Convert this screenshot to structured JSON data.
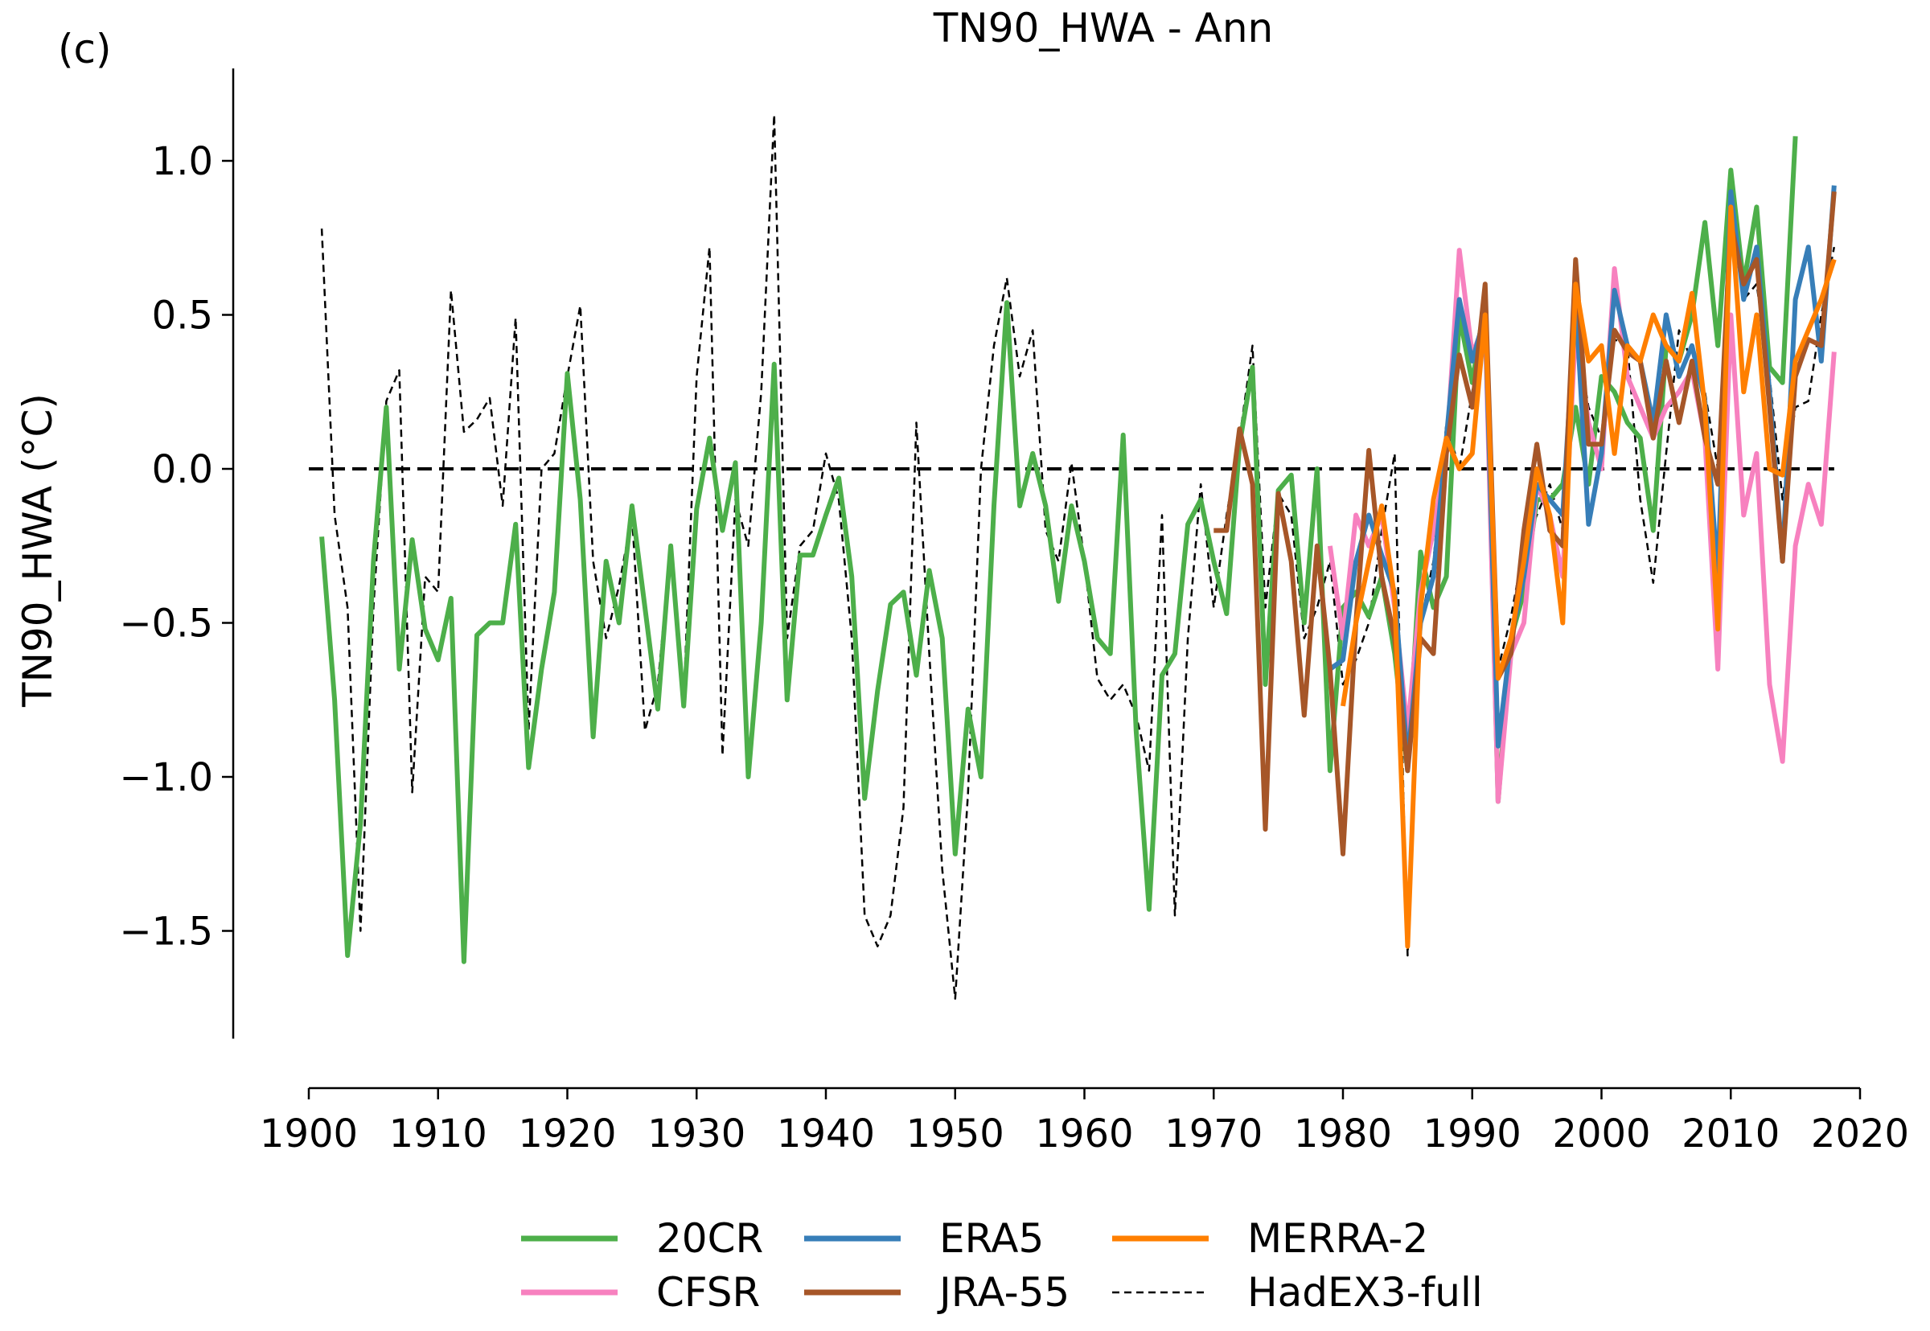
{
  "panel_label": "(c)",
  "chart_data": {
    "type": "line",
    "title": "TN90_HWA - Ann",
    "xlabel": "",
    "ylabel": "TN90_HWA (°C)",
    "xlim": [
      1900,
      2020
    ],
    "ylim": [
      -1.85,
      1.3
    ],
    "xticks": [
      1900,
      1910,
      1920,
      1930,
      1940,
      1950,
      1960,
      1970,
      1980,
      1990,
      2000,
      2010,
      2020
    ],
    "yticks": [
      1.0,
      0.5,
      0.0,
      -0.5,
      -1.0,
      -1.5
    ],
    "ytick_labels": [
      "1.0",
      "0.5",
      "0.0",
      "−0.5",
      "−1.0",
      "−1.5"
    ],
    "grid": false,
    "reference_line": {
      "y": 0.0,
      "x_range": [
        1900,
        2018
      ],
      "style": "dashed",
      "color": "#000000"
    },
    "legend": {
      "placement": "bottom",
      "columns": 3
    },
    "series": [
      {
        "name": "HadEX3-full",
        "color": "#000000",
        "style": "dashed",
        "x": [
          1901,
          1902,
          1903,
          1904,
          1905,
          1906,
          1907,
          1908,
          1909,
          1910,
          1911,
          1912,
          1913,
          1914,
          1915,
          1916,
          1917,
          1918,
          1919,
          1920,
          1921,
          1922,
          1923,
          1924,
          1925,
          1926,
          1927,
          1928,
          1929,
          1930,
          1931,
          1932,
          1933,
          1934,
          1935,
          1936,
          1937,
          1938,
          1939,
          1940,
          1941,
          1942,
          1943,
          1944,
          1945,
          1946,
          1947,
          1948,
          1949,
          1950,
          1951,
          1952,
          1953,
          1954,
          1955,
          1956,
          1957,
          1958,
          1959,
          1960,
          1961,
          1962,
          1963,
          1964,
          1965,
          1966,
          1967,
          1968,
          1969,
          1970,
          1971,
          1972,
          1973,
          1974,
          1975,
          1976,
          1977,
          1978,
          1979,
          1980,
          1981,
          1982,
          1983,
          1984,
          1985,
          1986,
          1987,
          1988,
          1989,
          1990,
          1991,
          1992,
          1993,
          1994,
          1995,
          1996,
          1997,
          1998,
          1999,
          2000,
          2001,
          2002,
          2003,
          2004,
          2005,
          2006,
          2007,
          2008,
          2009,
          2010,
          2011,
          2012,
          2013,
          2014,
          2015,
          2016,
          2017,
          2018
        ],
        "y": [
          0.78,
          -0.15,
          -0.45,
          -1.5,
          -0.45,
          0.22,
          0.32,
          -1.05,
          -0.35,
          -0.4,
          0.58,
          0.12,
          0.16,
          0.23,
          -0.12,
          0.49,
          -0.85,
          0.0,
          0.05,
          0.3,
          0.53,
          -0.3,
          -0.55,
          -0.38,
          -0.15,
          -0.85,
          -0.7,
          -0.25,
          -0.75,
          0.3,
          0.72,
          -0.93,
          -0.1,
          -0.25,
          0.25,
          1.15,
          -0.55,
          -0.25,
          -0.2,
          0.05,
          -0.1,
          -0.55,
          -1.45,
          -1.55,
          -1.45,
          -1.1,
          0.15,
          -0.6,
          -1.3,
          -1.72,
          -1.05,
          0.0,
          0.4,
          0.62,
          0.3,
          0.45,
          -0.2,
          -0.3,
          0.02,
          -0.3,
          -0.68,
          -0.75,
          -0.7,
          -0.8,
          -0.98,
          -0.15,
          -1.45,
          -0.55,
          -0.05,
          -0.45,
          -0.15,
          0.1,
          0.4,
          -0.45,
          -0.08,
          -0.15,
          -0.55,
          -0.45,
          -0.3,
          -0.7,
          -0.62,
          -0.5,
          -0.2,
          0.05,
          -1.58,
          -0.5,
          -0.3,
          0.15,
          0.0,
          0.25,
          0.58,
          -0.65,
          -0.48,
          -0.25,
          -0.15,
          -0.05,
          -0.2,
          0.45,
          0.2,
          0.1,
          0.42,
          0.4,
          -0.1,
          -0.37,
          0.05,
          0.45,
          0.35,
          0.25,
          0.0,
          0.85,
          0.55,
          0.6,
          0.3,
          -0.1,
          0.2,
          0.22,
          0.5,
          0.72
        ]
      },
      {
        "name": "20CR",
        "color": "#4daf4a",
        "style": "solid",
        "x": [
          1901,
          1902,
          1903,
          1904,
          1905,
          1906,
          1907,
          1908,
          1909,
          1910,
          1911,
          1912,
          1913,
          1914,
          1915,
          1916,
          1917,
          1918,
          1919,
          1920,
          1921,
          1922,
          1923,
          1924,
          1925,
          1926,
          1927,
          1928,
          1929,
          1930,
          1931,
          1932,
          1933,
          1934,
          1935,
          1936,
          1937,
          1938,
          1939,
          1940,
          1941,
          1942,
          1943,
          1944,
          1945,
          1946,
          1947,
          1948,
          1949,
          1950,
          1951,
          1952,
          1953,
          1954,
          1955,
          1956,
          1957,
          1958,
          1959,
          1960,
          1961,
          1962,
          1963,
          1964,
          1965,
          1966,
          1967,
          1968,
          1969,
          1970,
          1971,
          1972,
          1973,
          1974,
          1975,
          1976,
          1977,
          1978,
          1979,
          1980,
          1981,
          1982,
          1983,
          1984,
          1985,
          1986,
          1987,
          1988,
          1989,
          1990,
          1991,
          1992,
          1993,
          1994,
          1995,
          1996,
          1997,
          1998,
          1999,
          2000,
          2001,
          2002,
          2003,
          2004,
          2005,
          2006,
          2007,
          2008,
          2009,
          2010,
          2011,
          2012,
          2013,
          2014,
          2015
        ],
        "y": [
          -0.22,
          -0.75,
          -1.58,
          -1.15,
          -0.3,
          0.2,
          -0.65,
          -0.23,
          -0.52,
          -0.62,
          -0.42,
          -1.6,
          -0.54,
          -0.5,
          -0.5,
          -0.18,
          -0.97,
          -0.65,
          -0.4,
          0.31,
          -0.1,
          -0.87,
          -0.3,
          -0.5,
          -0.12,
          -0.45,
          -0.78,
          -0.25,
          -0.77,
          -0.13,
          0.1,
          -0.2,
          0.02,
          -1.0,
          -0.5,
          0.34,
          -0.75,
          -0.28,
          -0.28,
          -0.15,
          -0.03,
          -0.35,
          -1.07,
          -0.72,
          -0.44,
          -0.4,
          -0.67,
          -0.33,
          -0.55,
          -1.25,
          -0.78,
          -1.0,
          -0.12,
          0.54,
          -0.12,
          0.05,
          -0.12,
          -0.43,
          -0.12,
          -0.3,
          -0.55,
          -0.6,
          0.11,
          -0.85,
          -1.43,
          -0.67,
          -0.6,
          -0.18,
          -0.1,
          -0.3,
          -0.47,
          0.08,
          0.33,
          -0.7,
          -0.07,
          -0.02,
          -0.5,
          0.0,
          -0.98,
          -0.45,
          -0.4,
          -0.48,
          -0.35,
          -0.6,
          -0.98,
          -0.27,
          -0.45,
          -0.35,
          0.5,
          0.28,
          0.55,
          -1.08,
          -0.55,
          -0.4,
          -0.1,
          -0.1,
          -0.05,
          0.2,
          -0.05,
          0.3,
          0.25,
          0.15,
          0.1,
          -0.2,
          0.4,
          0.35,
          0.5,
          0.8,
          0.4,
          0.97,
          0.6,
          0.85,
          0.33,
          0.28,
          1.08
        ]
      },
      {
        "name": "CFSR",
        "color": "#f781bf",
        "style": "solid",
        "x": [
          1979,
          1980,
          1981,
          1982,
          1983,
          1984,
          1985,
          1986,
          1987,
          1988,
          1989,
          1990,
          1991,
          1992,
          1993,
          1994,
          1995,
          1996,
          1997,
          1998,
          1999,
          2000,
          2001,
          2002,
          2003,
          2004,
          2005,
          2006,
          2007,
          2008,
          2009,
          2010,
          2011,
          2012,
          2013,
          2014,
          2015,
          2016,
          2017,
          2018
        ],
        "y": [
          -0.25,
          -0.55,
          -0.15,
          -0.25,
          -0.15,
          -0.45,
          -0.85,
          -0.4,
          -0.2,
          0.05,
          0.71,
          0.37,
          0.48,
          -1.08,
          -0.6,
          -0.5,
          -0.05,
          -0.15,
          -0.35,
          0.45,
          0.15,
          0.0,
          0.65,
          0.3,
          0.2,
          0.1,
          0.2,
          0.25,
          0.32,
          0.1,
          -0.65,
          0.5,
          -0.15,
          0.05,
          -0.7,
          -0.95,
          -0.25,
          -0.05,
          -0.18,
          0.38
        ]
      },
      {
        "name": "ERA5",
        "color": "#377eb8",
        "style": "solid",
        "x": [
          1979,
          1980,
          1981,
          1982,
          1983,
          1984,
          1985,
          1986,
          1987,
          1988,
          1989,
          1990,
          1991,
          1992,
          1993,
          1994,
          1995,
          1996,
          1997,
          1998,
          1999,
          2000,
          2001,
          2002,
          2003,
          2004,
          2005,
          2006,
          2007,
          2008,
          2009,
          2010,
          2011,
          2012,
          2013,
          2014,
          2015,
          2016,
          2017,
          2018
        ],
        "y": [
          -0.65,
          -0.62,
          -0.3,
          -0.15,
          -0.28,
          -0.4,
          -0.95,
          -0.5,
          -0.35,
          0.1,
          0.55,
          0.35,
          0.5,
          -0.9,
          -0.55,
          -0.35,
          -0.05,
          -0.1,
          -0.15,
          0.55,
          -0.18,
          0.05,
          0.58,
          0.4,
          0.35,
          0.15,
          0.5,
          0.3,
          0.4,
          0.22,
          -0.35,
          0.9,
          0.55,
          0.72,
          0.25,
          -0.3,
          0.55,
          0.72,
          0.35,
          0.92
        ]
      },
      {
        "name": "JRA-55",
        "color": "#a65628",
        "style": "solid",
        "x": [
          1970,
          1971,
          1972,
          1973,
          1974,
          1975,
          1976,
          1977,
          1978,
          1979,
          1980,
          1981,
          1982,
          1983,
          1984,
          1985,
          1986,
          1987,
          1988,
          1989,
          1990,
          1991,
          1992,
          1993,
          1994,
          1995,
          1996,
          1997,
          1998,
          1999,
          2000,
          2001,
          2002,
          2003,
          2004,
          2005,
          2006,
          2007,
          2008,
          2009,
          2010,
          2011,
          2012,
          2013,
          2014,
          2015,
          2016,
          2017,
          2018
        ],
        "y": [
          -0.2,
          -0.2,
          0.13,
          -0.05,
          -1.17,
          -0.08,
          -0.3,
          -0.8,
          -0.25,
          -0.65,
          -1.25,
          -0.5,
          0.06,
          -0.35,
          -0.55,
          -0.98,
          -0.55,
          -0.6,
          0.05,
          0.37,
          0.2,
          0.6,
          -0.68,
          -0.6,
          -0.2,
          0.08,
          -0.2,
          -0.25,
          0.68,
          0.08,
          0.08,
          0.45,
          0.38,
          0.35,
          0.1,
          0.35,
          0.15,
          0.35,
          0.1,
          -0.05,
          0.8,
          0.6,
          0.68,
          0.2,
          -0.3,
          0.3,
          0.42,
          0.4,
          0.9
        ]
      },
      {
        "name": "MERRA-2",
        "color": "#ff7f00",
        "style": "solid",
        "x": [
          1980,
          1981,
          1982,
          1983,
          1984,
          1985,
          1986,
          1987,
          1988,
          1989,
          1990,
          1991,
          1992,
          1993,
          1994,
          1995,
          1996,
          1997,
          1998,
          1999,
          2000,
          2001,
          2002,
          2003,
          2004,
          2005,
          2006,
          2007,
          2008,
          2009,
          2010,
          2011,
          2012,
          2013,
          2014,
          2015,
          2016,
          2017,
          2018
        ],
        "y": [
          -0.77,
          -0.5,
          -0.3,
          -0.12,
          -0.42,
          -1.55,
          -0.45,
          -0.1,
          0.1,
          0.0,
          0.05,
          0.5,
          -0.68,
          -0.55,
          -0.3,
          0.0,
          -0.15,
          -0.5,
          0.6,
          0.35,
          0.4,
          0.05,
          0.4,
          0.35,
          0.5,
          0.4,
          0.35,
          0.57,
          0.2,
          -0.52,
          0.85,
          0.25,
          0.5,
          0.0,
          -0.02,
          0.35,
          0.45,
          0.55,
          0.68
        ]
      }
    ]
  }
}
